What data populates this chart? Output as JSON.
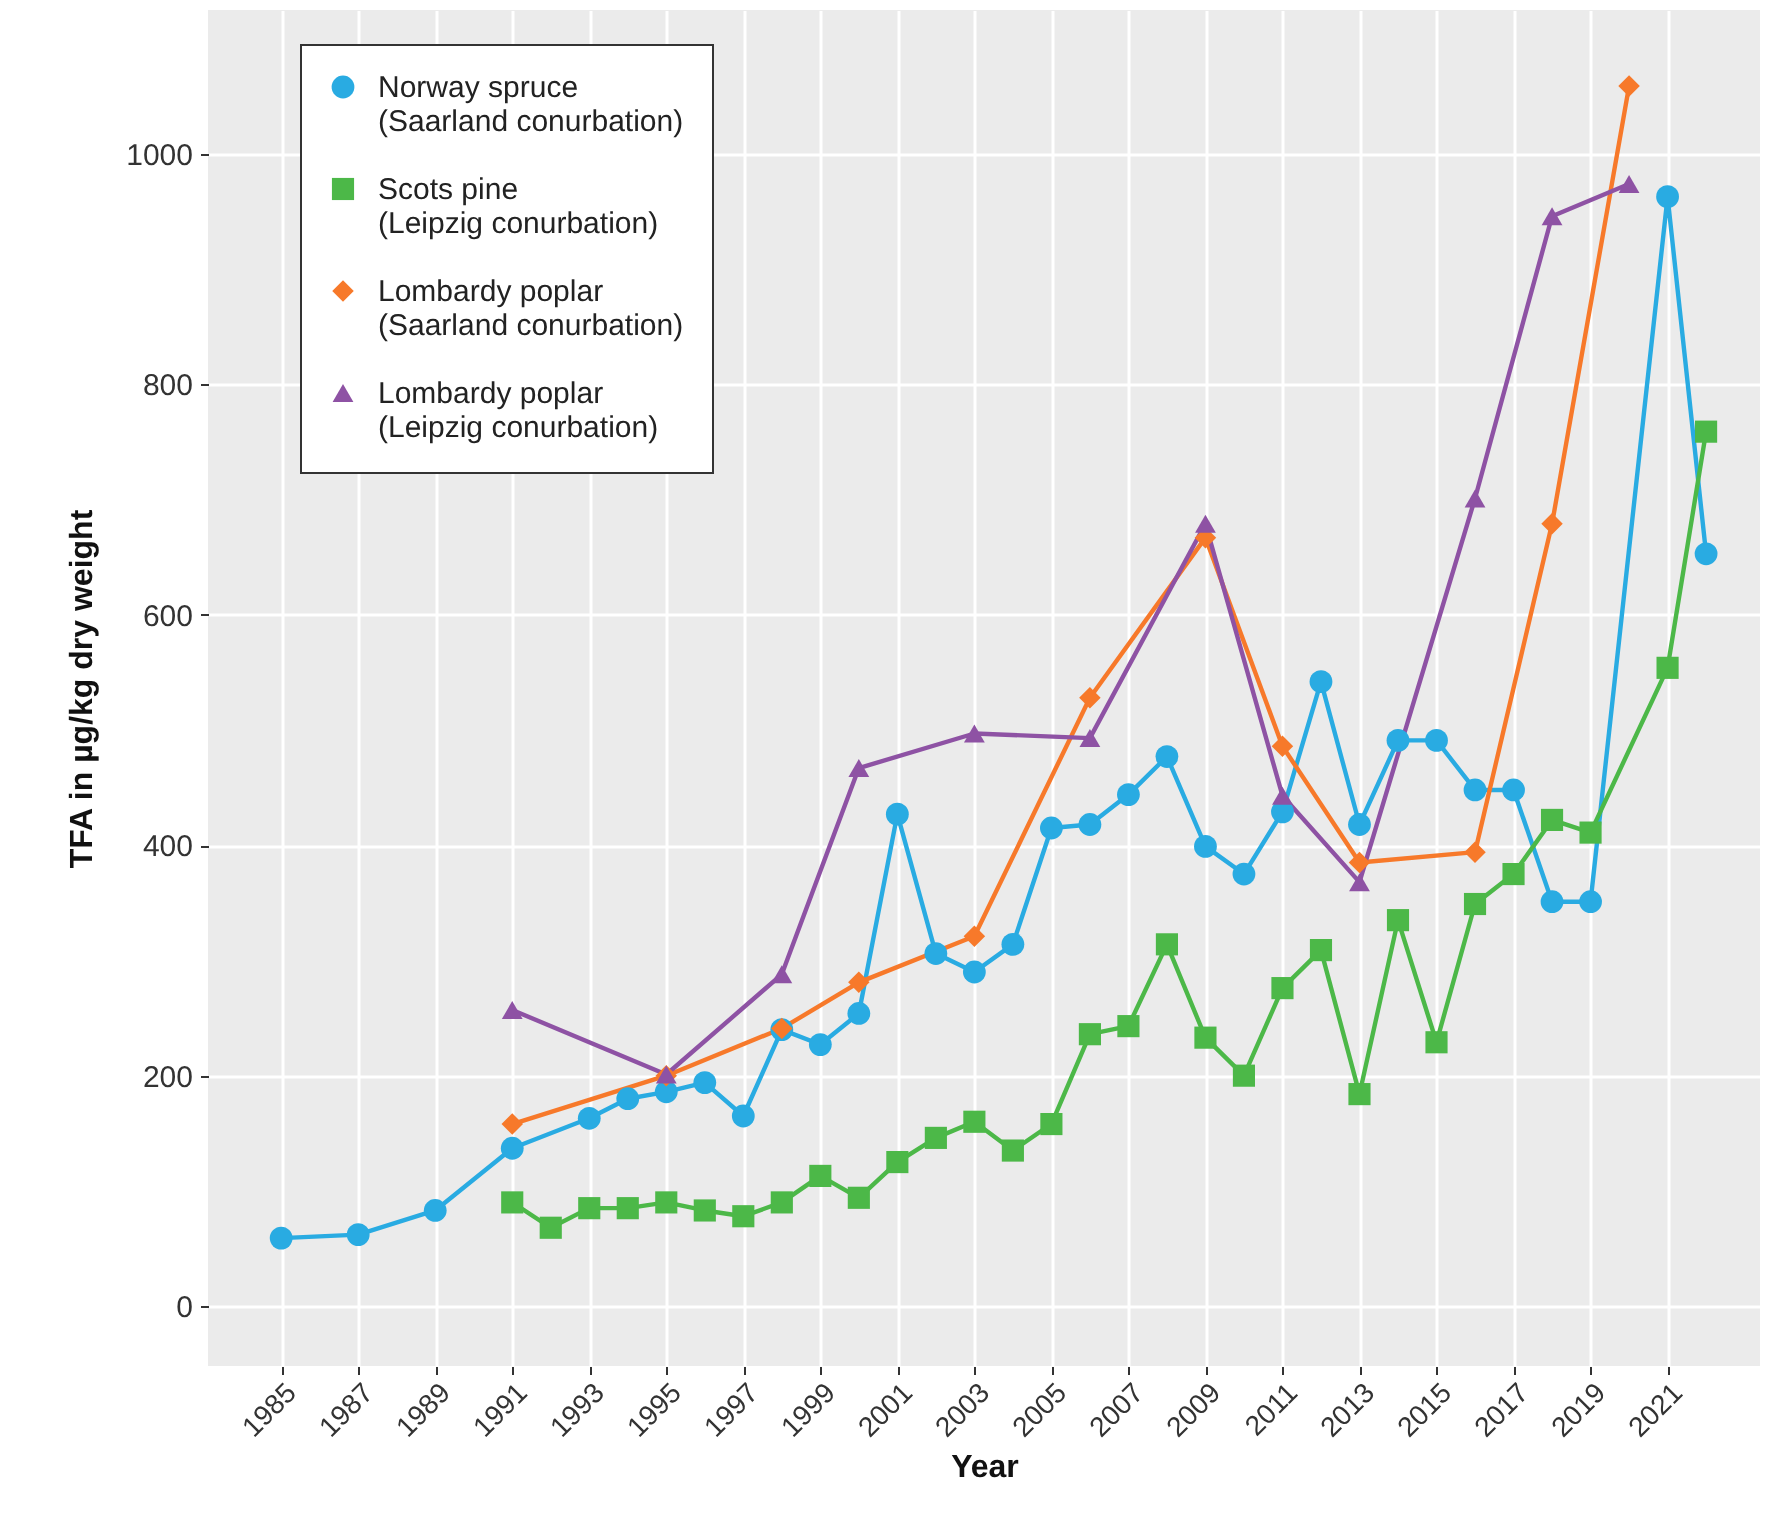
{
  "chart_data": {
    "type": "line",
    "xlabel": "Year",
    "ylabel": "TFA in µg/kg dry weight",
    "xlim": [
      1983.1,
      2023.4
    ],
    "ylim": [
      -52,
      1125
    ],
    "xticks": [
      1985,
      1987,
      1989,
      1991,
      1993,
      1995,
      1997,
      1999,
      2001,
      2003,
      2005,
      2007,
      2009,
      2011,
      2013,
      2015,
      2017,
      2019,
      2021
    ],
    "yticks": [
      0,
      200,
      400,
      600,
      800,
      1000
    ],
    "grid": true,
    "legend": "top left",
    "series": [
      {
        "name": "Norway spruce (Saarland conurbation)",
        "color": "#29abe2",
        "marker": "circle",
        "x": [
          1985,
          1987,
          1989,
          1991,
          1993,
          1994,
          1995,
          1996,
          1997,
          1998,
          1999,
          2000,
          2001,
          2002,
          2003,
          2004,
          2005,
          2006,
          2007,
          2008,
          2009,
          2010,
          2011,
          2012,
          2013,
          2014,
          2015,
          2016,
          2017,
          2018,
          2019,
          2021,
          2022
        ],
        "values": [
          59,
          62,
          83,
          137,
          163,
          180,
          186,
          194,
          165,
          240,
          227,
          254,
          427,
          306,
          290,
          314,
          415,
          418,
          444,
          477,
          399,
          375,
          429,
          542,
          418,
          491,
          491,
          448,
          448,
          351,
          351,
          963,
          653
        ]
      },
      {
        "name": "Scots pine (Leipzig conurbation)",
        "color": "#4cb848",
        "marker": "square",
        "x": [
          1991,
          1992,
          1993,
          1994,
          1995,
          1996,
          1997,
          1998,
          1999,
          2000,
          2001,
          2002,
          2003,
          2004,
          2005,
          2006,
          2007,
          2008,
          2009,
          2010,
          2011,
          2012,
          2013,
          2014,
          2015,
          2016,
          2017,
          2018,
          2019,
          2021,
          2022
        ],
        "values": [
          90,
          68,
          85,
          85,
          90,
          83,
          78,
          90,
          113,
          94,
          125,
          146,
          160,
          135,
          158,
          236,
          243,
          314,
          233,
          200,
          276,
          309,
          184,
          335,
          229,
          349,
          375,
          422,
          411,
          554,
          759
        ]
      },
      {
        "name": "Lombardy poplar (Saarland conurbation)",
        "color": "#f7792a",
        "marker": "diamond",
        "x": [
          1991,
          1995,
          1998,
          2000,
          2003,
          2006,
          2009,
          2011,
          2013,
          2016,
          2018,
          2020
        ],
        "values": [
          158,
          200,
          241,
          281,
          321,
          528,
          667,
          486,
          385,
          394,
          679,
          1059
        ]
      },
      {
        "name": "Lombardy poplar (Leipzig conurbation)",
        "color": "#8e52a4",
        "marker": "triangle",
        "x": [
          1991,
          1995,
          1998,
          2000,
          2003,
          2006,
          2009,
          2011,
          2013,
          2016,
          2018,
          2020
        ],
        "values": [
          257,
          201,
          288,
          467,
          497,
          493,
          679,
          443,
          368,
          701,
          946,
          974
        ]
      }
    ]
  }
}
